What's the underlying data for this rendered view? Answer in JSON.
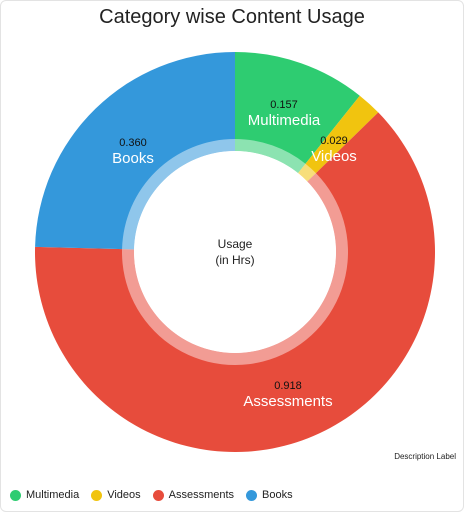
{
  "chart_data": {
    "type": "pie",
    "variant": "donut",
    "title": "Category wise Content Usage",
    "center_label": [
      "Usage",
      "(in Hrs)"
    ],
    "description_label": "Description Label",
    "legend_position": "bottom-left",
    "slices": [
      {
        "name": "Multimedia",
        "value": 0.157,
        "value_label": "0.157",
        "color": "#2ecc71"
      },
      {
        "name": "Videos",
        "value": 0.029,
        "value_label": "0.029",
        "color": "#f1c40f"
      },
      {
        "name": "Assessments",
        "value": 0.918,
        "value_label": "0.918",
        "color": "#e74c3c"
      },
      {
        "name": "Books",
        "value": 0.36,
        "value_label": "0.360",
        "color": "#3498db"
      }
    ]
  }
}
